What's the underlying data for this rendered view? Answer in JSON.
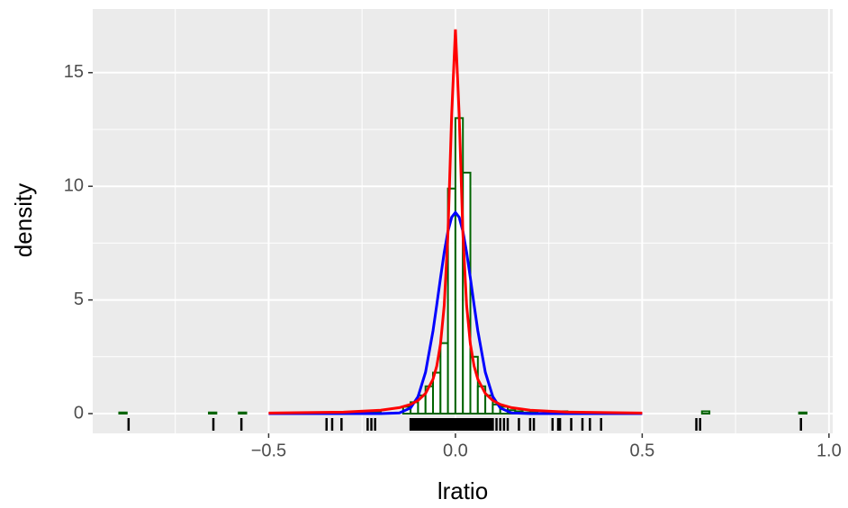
{
  "chart_data": {
    "type": "histogram",
    "x_label": "lratio",
    "y_label": "density",
    "xlim": [
      -0.971,
      1.01
    ],
    "ylim": [
      -0.87,
      17.8
    ],
    "xticks": [
      {
        "value": -0.5,
        "label": "−0.5"
      },
      {
        "value": 0,
        "label": "0.0"
      },
      0.5,
      {
        "value": 1,
        "label": "1.0"
      }
    ],
    "yticks": [
      0,
      5,
      10,
      15
    ],
    "x_minor_grid": [
      -0.75,
      -0.25,
      0.25,
      0.75
    ],
    "y_minor_grid": [
      2.5,
      7.5,
      12.5
    ],
    "grid": true,
    "color": "#006400",
    "bins": [
      -0.9,
      -0.88,
      -0.86,
      -0.84,
      -0.82,
      -0.8,
      -0.78,
      -0.76,
      -0.74,
      -0.72,
      -0.7,
      -0.68,
      -0.66,
      -0.64,
      -0.62,
      -0.6,
      -0.58,
      -0.56,
      -0.54,
      -0.52,
      -0.5,
      -0.48,
      -0.46,
      -0.44,
      -0.42,
      -0.4,
      -0.38,
      -0.36,
      -0.34,
      -0.32,
      -0.3,
      -0.28,
      -0.26,
      -0.24,
      -0.22,
      -0.2,
      -0.18,
      -0.16,
      -0.14,
      -0.12,
      -0.1,
      -0.08,
      -0.06,
      -0.04,
      -0.02,
      0,
      0.02,
      0.04,
      0.06,
      0.08,
      0.1,
      0.12,
      0.14,
      0.16,
      0.18,
      0.2,
      0.22,
      0.24,
      0.26,
      0.28,
      0.3,
      0.32,
      0.34,
      0.36,
      0.38,
      0.4,
      0.42,
      0.44,
      0.46,
      0.48,
      0.5,
      0.52,
      0.54,
      0.56,
      0.58,
      0.6,
      0.62,
      0.64,
      0.66,
      0.68,
      0.7,
      0.72,
      0.74,
      0.76,
      0.78,
      0.8,
      0.82,
      0.84,
      0.86,
      0.88,
      0.9,
      0.92,
      0.94
    ],
    "values": [
      0.05,
      0,
      0,
      0,
      0,
      0,
      0,
      0,
      0,
      0,
      0,
      0,
      0.05,
      0,
      0,
      0,
      0.05,
      0,
      0,
      0,
      0,
      0,
      0,
      0,
      0,
      0,
      0,
      0.05,
      0.05,
      0.05,
      0,
      0,
      0,
      0.05,
      0.1,
      0,
      0,
      0,
      0.3,
      0.5,
      0.8,
      1.2,
      1.8,
      3.1,
      9.9,
      13,
      10.6,
      2.5,
      1.2,
      0.8,
      0.4,
      0.3,
      0.15,
      0.1,
      0.05,
      0.1,
      0,
      0,
      0.05,
      0.1,
      0,
      0.05,
      0.05,
      0,
      0.05,
      0,
      0,
      0,
      0,
      0,
      0,
      0,
      0,
      0,
      0,
      0,
      0,
      0,
      0.1,
      0,
      0,
      0,
      0,
      0,
      0,
      0,
      0,
      0,
      0,
      0,
      0,
      0.05
    ],
    "curve_x": [
      -0.5,
      -0.3,
      -0.2,
      -0.15,
      -0.12,
      -0.1,
      -0.08,
      -0.06,
      -0.05,
      -0.04,
      -0.03,
      -0.02,
      -0.01,
      0,
      0.01,
      0.02,
      0.03,
      0.04,
      0.05,
      0.06,
      0.08,
      0.1,
      0.12,
      0.15,
      0.2,
      0.3,
      0.5
    ],
    "series": [
      {
        "color": "#0000ff",
        "values": [
          0,
          0,
          0,
          0.03,
          0.25,
          0.75,
          1.82,
          3.64,
          4.78,
          5.96,
          7.09,
          8.02,
          8.64,
          8.85,
          8.64,
          8.02,
          7.09,
          5.96,
          4.78,
          3.64,
          1.82,
          0.75,
          0.25,
          0.03,
          0,
          0,
          0
        ]
      },
      {
        "color": "#ff0000",
        "values": [
          0.024,
          0.066,
          0.148,
          0.261,
          0.405,
          0.577,
          0.885,
          1.51,
          2.09,
          3.06,
          4.76,
          7.92,
          13.17,
          16.9,
          13.17,
          7.92,
          4.76,
          3.06,
          2.09,
          1.51,
          0.885,
          0.577,
          0.405,
          0.261,
          0.148,
          0.066,
          0.024
        ]
      }
    ],
    "rug": [
      -0.875,
      -0.648,
      -0.573,
      -0.345,
      -0.33,
      -0.305,
      -0.235,
      -0.225,
      -0.215,
      -0.12,
      -0.115,
      -0.11,
      -0.105,
      -0.1,
      -0.095,
      -0.09,
      -0.085,
      -0.08,
      -0.075,
      -0.07,
      -0.065,
      -0.06,
      -0.055,
      -0.05,
      -0.045,
      -0.04,
      -0.035,
      -0.03,
      -0.025,
      -0.02,
      -0.015,
      -0.01,
      -0.005,
      0,
      0.005,
      0.01,
      0.015,
      0.02,
      0.025,
      0.03,
      0.035,
      0.04,
      0.045,
      0.05,
      0.055,
      0.06,
      0.065,
      0.07,
      0.075,
      0.08,
      0.085,
      0.09,
      0.095,
      0.1,
      0.11,
      0.12,
      0.13,
      0.14,
      0.17,
      0.2,
      0.21,
      0.26,
      0.275,
      0.28,
      0.31,
      0.34,
      0.36,
      0.39,
      0.645,
      0.655,
      0.925
    ]
  }
}
